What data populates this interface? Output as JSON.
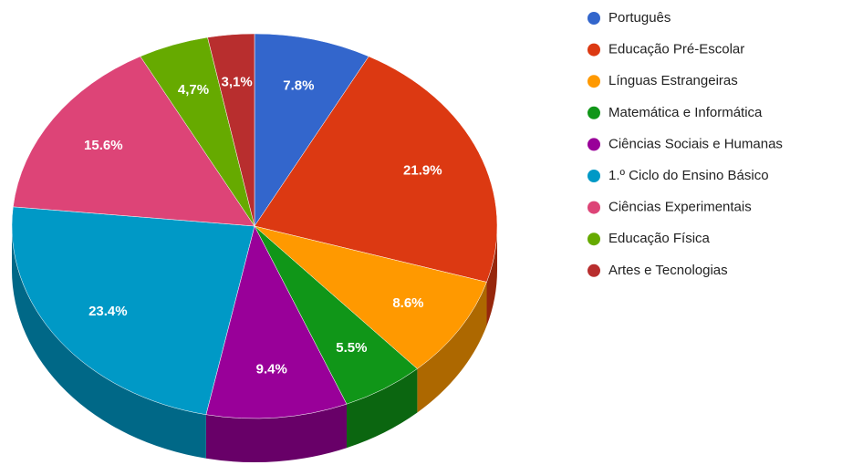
{
  "chart_data": {
    "type": "pie",
    "categories": [
      "Português",
      "Educação Pré-Escolar",
      "Línguas Estrangeiras",
      "Matemática e Informática",
      "Ciências Sociais e Humanas",
      "1.º Ciclo do Ensino Básico",
      "Ciências Experimentais",
      "Educação Física",
      "Artes e Tecnologias"
    ],
    "values": [
      7.8,
      21.9,
      8.6,
      5.5,
      9.4,
      23.4,
      15.6,
      4.7,
      3.1
    ],
    "value_labels": [
      "7.8%",
      "21.9%",
      "8.6%",
      "5.5%",
      "9.4%",
      "23.4%",
      "15.6%",
      "4,7%",
      "3,1%"
    ],
    "colors": [
      "#3366cc",
      "#dc3912",
      "#ff9900",
      "#109618",
      "#990099",
      "#0099c6",
      "#dd4477",
      "#66aa00",
      "#b82e2e"
    ],
    "legend": "right",
    "three_d": true
  }
}
